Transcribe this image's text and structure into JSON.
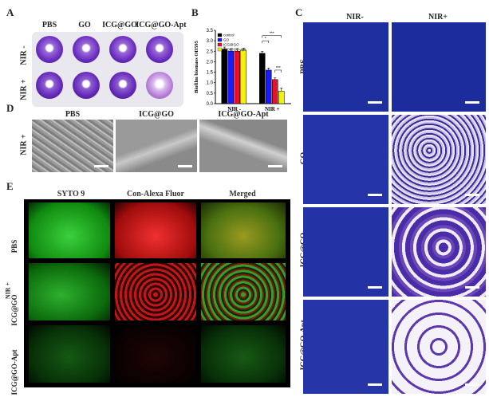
{
  "panels": {
    "A": "A",
    "B": "B",
    "C": "C",
    "D": "D",
    "E": "E"
  },
  "panelA": {
    "col_headers": [
      "PBS",
      "GO",
      "ICG@GO",
      "ICG@GO-Apt"
    ],
    "row_labels": [
      "NIR -",
      "NIR +"
    ]
  },
  "panelC": {
    "col_headers": [
      "NIR-",
      "NIR+"
    ],
    "row_labels": [
      "PBS",
      "GO",
      "ICG@GO",
      "ICG@GO-Apt"
    ]
  },
  "panelD": {
    "col_headers": [
      "PBS",
      "ICG@GO",
      "ICG@GO-Apt"
    ],
    "row_label": "NIR +"
  },
  "panelE": {
    "col_headers": [
      "SYTO 9",
      "Con-Alexa Fluor",
      "Merged"
    ],
    "row_labels": [
      "PBS",
      "ICG@GO",
      "ICG@GO-Apt"
    ],
    "group_label": "NIR +"
  },
  "chart_data": {
    "type": "bar",
    "ylabel": "Biofilm biomass OD595",
    "ylim": [
      0,
      3.5
    ],
    "yticks": [
      "0.0",
      "0.5",
      "1.0",
      "1.5",
      "2.0",
      "2.5",
      "3.0",
      "3.5"
    ],
    "categories": [
      "NIR -",
      "NIR +"
    ],
    "series": [
      {
        "name": "control",
        "color": "#000000",
        "values": [
          2.6,
          2.4
        ],
        "errors": [
          0.1,
          0.1
        ]
      },
      {
        "name": "GO",
        "color": "#1a1aff",
        "values": [
          2.5,
          1.6
        ],
        "errors": [
          0.12,
          0.1
        ]
      },
      {
        "name": "ICG@GO",
        "color": "#e8102a",
        "values": [
          2.5,
          1.15
        ],
        "errors": [
          0.12,
          0.08
        ]
      },
      {
        "name": "ICG@GO-Apt",
        "color": "#f2f20a",
        "values": [
          2.55,
          0.6
        ],
        "errors": [
          0.1,
          0.15
        ]
      }
    ],
    "significance": [
      "*",
      "***",
      "***"
    ],
    "legend_position": "top-left"
  }
}
